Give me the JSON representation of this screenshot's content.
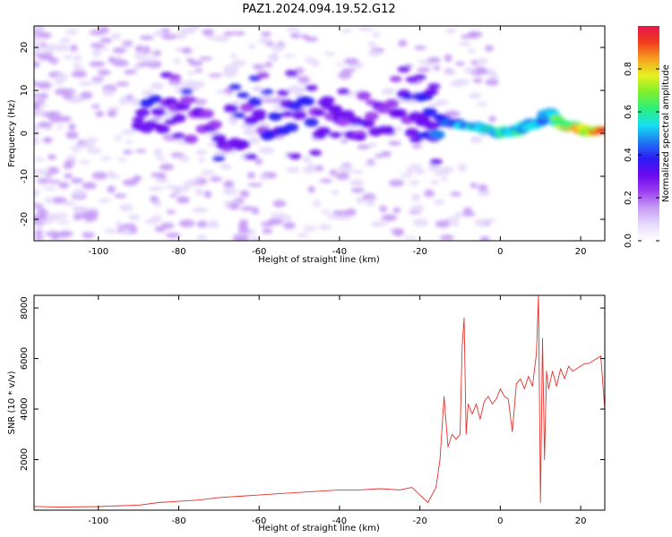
{
  "title": "PAZ1.2024.094.19.52.G12",
  "colors": {
    "snr_line": "#e8302a",
    "spectro_palette": [
      "#ffffff",
      "#e6d9fb",
      "#c79cf6",
      "#9b3df0",
      "#6a08f0",
      "#2a1ef5",
      "#1e7bf3",
      "#15e0f0",
      "#2cf07a",
      "#7ef02c",
      "#e6f01e",
      "#f5a11e",
      "#f03c1e",
      "#e8154a"
    ]
  },
  "chart_data": [
    {
      "type": "heatmap",
      "xlabel": "Height of straight line (km)",
      "ylabel": "Frequency (Hz)",
      "xlim": [
        -116,
        26
      ],
      "ylim": [
        -25,
        25
      ],
      "xticks": [
        -100,
        -80,
        -60,
        -40,
        -20,
        0,
        20
      ],
      "yticks": [
        -20,
        -10,
        0,
        10,
        20
      ],
      "colorbar": {
        "label": "Normalized spectral amplitude",
        "range": [
          0,
          1
        ],
        "ticks": [
          "0.0",
          "0.2",
          "0.4",
          "0.6",
          "0.8"
        ],
        "tick_values": [
          0,
          0.2,
          0.4,
          0.6,
          0.8
        ]
      },
      "ridge": {
        "x": [
          -90,
          -80,
          -70,
          -60,
          -50,
          -40,
          -30,
          -20,
          -15,
          -10,
          -5,
          0,
          5,
          10,
          12,
          15,
          20,
          26
        ],
        "freq_hz": [
          3,
          4,
          1,
          3,
          4,
          3,
          5,
          4,
          3,
          2,
          1,
          0,
          1,
          3,
          5,
          2,
          1,
          0
        ],
        "amplitude": [
          0.35,
          0.3,
          0.3,
          0.35,
          0.35,
          0.3,
          0.3,
          0.35,
          0.45,
          0.5,
          0.55,
          0.6,
          0.55,
          0.5,
          0.55,
          0.7,
          0.8,
          0.9
        ]
      }
    },
    {
      "type": "line",
      "xlabel": "Height of straight line (km)",
      "ylabel": "SNR (10 * v/v)",
      "xlim": [
        -116,
        26
      ],
      "ylim": [
        0,
        8500
      ],
      "xticks": [
        -100,
        -80,
        -60,
        -40,
        -20,
        0,
        20
      ],
      "yticks": [
        2000,
        4000,
        6000,
        8000
      ],
      "series": [
        {
          "x": [
            -116,
            -110,
            -100,
            -90,
            -85,
            -80,
            -75,
            -70,
            -65,
            -60,
            -55,
            -50,
            -45,
            -40,
            -35,
            -30,
            -25,
            -22,
            -20,
            -18,
            -16,
            -15,
            -14,
            -13,
            -12,
            -11,
            -10,
            -9.5,
            -9,
            -8.5,
            -8,
            -7,
            -6,
            -5,
            -4,
            -3,
            -2,
            -1,
            0,
            1,
            2,
            3,
            4,
            5,
            6,
            7,
            8,
            9,
            9.5,
            10,
            10.5,
            11,
            11.5,
            12,
            13,
            14,
            15,
            16,
            17,
            18,
            19,
            20,
            21,
            22,
            23,
            24,
            25,
            26
          ],
          "y": [
            150,
            120,
            140,
            200,
            300,
            350,
            400,
            500,
            550,
            600,
            650,
            700,
            750,
            800,
            800,
            850,
            800,
            900,
            600,
            300,
            900,
            2000,
            4500,
            2500,
            3000,
            2800,
            3000,
            6500,
            7600,
            3000,
            4200,
            3800,
            4200,
            3600,
            4300,
            4500,
            4200,
            4400,
            4800,
            4500,
            4400,
            3100,
            5000,
            5200,
            4800,
            5300,
            4900,
            6200,
            8500,
            300,
            6800,
            2000,
            5500,
            4800,
            5500,
            4900,
            5600,
            5200,
            5700,
            5500,
            5600,
            5700,
            5800,
            5800,
            5900,
            6000,
            6100,
            4000
          ]
        }
      ]
    }
  ]
}
